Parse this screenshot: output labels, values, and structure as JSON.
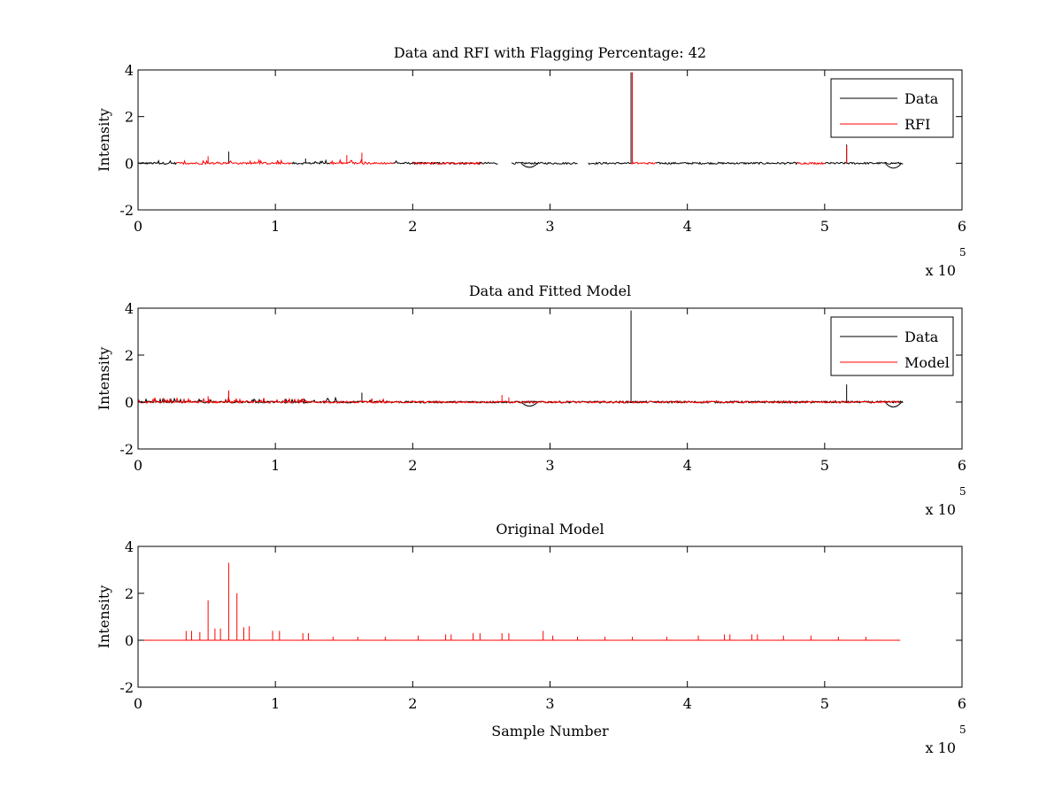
{
  "chart_data": [
    {
      "type": "line",
      "title": "Data and RFI with Flagging Percentage: 42",
      "xlabel": "",
      "ylabel": "Intensity",
      "xlim": [
        0,
        6
      ],
      "ylim": [
        -2,
        4
      ],
      "x_multiplier": {
        "base": "x 10",
        "exponent": "5"
      },
      "xticks": [
        "0",
        "1",
        "2",
        "3",
        "4",
        "5",
        "6"
      ],
      "yticks": [
        "-2",
        "0",
        "2",
        "4"
      ],
      "grid": false,
      "legend": {
        "position": "top-right",
        "entries": [
          "Data",
          "RFI"
        ]
      },
      "series": [
        {
          "name": "Data",
          "color": "#000000",
          "baseline": 0.0,
          "x_range": [
            0,
            5.57
          ],
          "segments": [
            [
              0,
              0.28
            ],
            [
              1.12,
              1.4
            ],
            [
              1.86,
              2.62
            ],
            [
              2.72,
              3.2
            ],
            [
              3.28,
              3.59
            ],
            [
              3.77,
              4.8
            ],
            [
              5.0,
              5.57
            ]
          ],
          "spikes": [
            {
              "x": 0.66,
              "y": 0.5
            },
            {
              "x": 1.22,
              "y": 0.2
            },
            {
              "x": 3.59,
              "y": 3.9
            },
            {
              "x": 5.16,
              "y": 0.8
            }
          ],
          "dips": [
            {
              "x": 2.85,
              "y": -0.25
            },
            {
              "x": 5.5,
              "y": -0.3
            }
          ]
        },
        {
          "name": "RFI",
          "color": "#ff0000",
          "baseline": 0.0,
          "segments": [
            [
              0.28,
              1.12
            ],
            [
              1.4,
              1.86
            ],
            [
              2.0,
              2.5
            ],
            [
              3.59,
              3.77
            ],
            [
              4.8,
              5.0
            ]
          ],
          "spikes": [
            {
              "x": 0.51,
              "y": 0.3
            },
            {
              "x": 1.52,
              "y": 0.35
            },
            {
              "x": 1.63,
              "y": 0.45
            },
            {
              "x": 3.6,
              "y": 3.9
            },
            {
              "x": 5.16,
              "y": 0.75
            }
          ]
        }
      ]
    },
    {
      "type": "line",
      "title": "Data and Fitted Model",
      "xlabel": "",
      "ylabel": "Intensity",
      "xlim": [
        0,
        6
      ],
      "ylim": [
        -2,
        4
      ],
      "x_multiplier": {
        "base": "x 10",
        "exponent": "5"
      },
      "xticks": [
        "0",
        "1",
        "2",
        "3",
        "4",
        "5",
        "6"
      ],
      "yticks": [
        "-2",
        "0",
        "2",
        "4"
      ],
      "grid": false,
      "legend": {
        "position": "top-right",
        "entries": [
          "Data",
          "Model"
        ]
      },
      "series": [
        {
          "name": "Data",
          "color": "#000000",
          "baseline": 0.0,
          "x_range": [
            0,
            5.57
          ],
          "spikes": [
            {
              "x": 0.66,
              "y": 0.45
            },
            {
              "x": 1.63,
              "y": 0.4
            },
            {
              "x": 3.59,
              "y": 3.9
            },
            {
              "x": 5.16,
              "y": 0.75
            }
          ],
          "dips": [
            {
              "x": 2.85,
              "y": -0.25
            },
            {
              "x": 5.5,
              "y": -0.3
            }
          ]
        },
        {
          "name": "Model",
          "color": "#ff0000",
          "baseline": 0.0,
          "x_range": [
            0,
            5.55
          ],
          "spikes": [
            {
              "x": 0.51,
              "y": 0.25
            },
            {
              "x": 0.66,
              "y": 0.5
            },
            {
              "x": 2.65,
              "y": 0.3
            },
            {
              "x": 2.7,
              "y": 0.2
            }
          ]
        }
      ]
    },
    {
      "type": "line",
      "title": "Original Model",
      "xlabel": "Sample Number",
      "ylabel": "Intensity",
      "xlim": [
        0,
        6
      ],
      "ylim": [
        -2,
        4
      ],
      "x_multiplier": {
        "base": "x 10",
        "exponent": "5"
      },
      "xticks": [
        "0",
        "1",
        "2",
        "3",
        "4",
        "5",
        "6"
      ],
      "yticks": [
        "-2",
        "0",
        "2",
        "4"
      ],
      "grid": false,
      "series": [
        {
          "color": "#ff0000",
          "baseline": 0.0,
          "x_range": [
            0,
            5.55
          ],
          "spikes": [
            {
              "x": 0.35,
              "y": 0.4
            },
            {
              "x": 0.39,
              "y": 0.4
            },
            {
              "x": 0.45,
              "y": 0.35
            },
            {
              "x": 0.51,
              "y": 1.7
            },
            {
              "x": 0.56,
              "y": 0.5
            },
            {
              "x": 0.6,
              "y": 0.5
            },
            {
              "x": 0.66,
              "y": 3.3
            },
            {
              "x": 0.72,
              "y": 2.0
            },
            {
              "x": 0.77,
              "y": 0.55
            },
            {
              "x": 0.81,
              "y": 0.6
            },
            {
              "x": 0.98,
              "y": 0.4
            },
            {
              "x": 1.03,
              "y": 0.4
            },
            {
              "x": 1.2,
              "y": 0.3
            },
            {
              "x": 1.24,
              "y": 0.3
            },
            {
              "x": 1.42,
              "y": 0.15
            },
            {
              "x": 1.6,
              "y": 0.15
            },
            {
              "x": 1.8,
              "y": 0.15
            },
            {
              "x": 2.04,
              "y": 0.2
            },
            {
              "x": 2.24,
              "y": 0.25
            },
            {
              "x": 2.28,
              "y": 0.25
            },
            {
              "x": 2.44,
              "y": 0.3
            },
            {
              "x": 2.49,
              "y": 0.3
            },
            {
              "x": 2.65,
              "y": 0.3
            },
            {
              "x": 2.7,
              "y": 0.3
            },
            {
              "x": 2.95,
              "y": 0.4
            },
            {
              "x": 3.02,
              "y": 0.2
            },
            {
              "x": 3.2,
              "y": 0.15
            },
            {
              "x": 3.4,
              "y": 0.15
            },
            {
              "x": 3.6,
              "y": 0.15
            },
            {
              "x": 3.85,
              "y": 0.15
            },
            {
              "x": 4.08,
              "y": 0.2
            },
            {
              "x": 4.27,
              "y": 0.25
            },
            {
              "x": 4.31,
              "y": 0.25
            },
            {
              "x": 4.47,
              "y": 0.25
            },
            {
              "x": 4.51,
              "y": 0.25
            },
            {
              "x": 4.7,
              "y": 0.2
            },
            {
              "x": 4.9,
              "y": 0.2
            },
            {
              "x": 5.1,
              "y": 0.15
            },
            {
              "x": 5.3,
              "y": 0.15
            }
          ]
        }
      ]
    }
  ]
}
